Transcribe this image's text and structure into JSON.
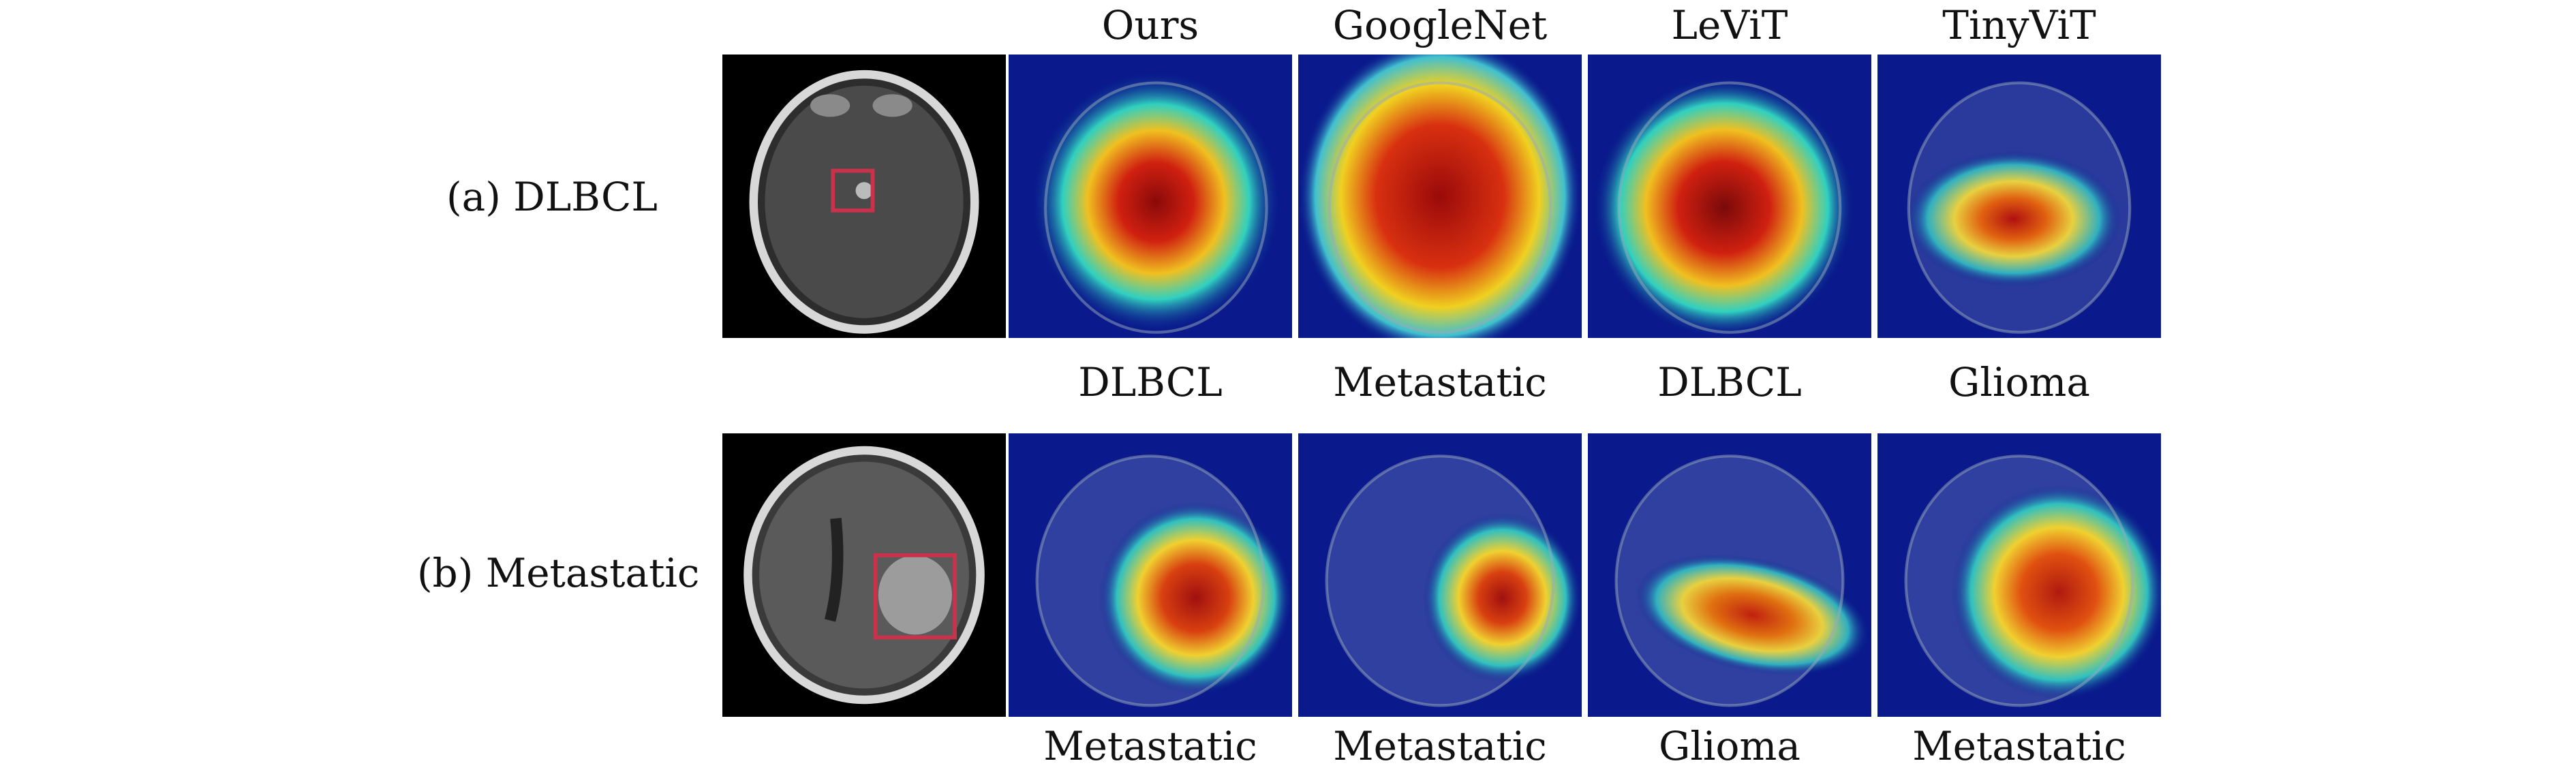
{
  "columns": [
    "Ours",
    "GoogleNet",
    "LeViT",
    "TinyViT"
  ],
  "rows": [
    {
      "label": "(a) DLBCL",
      "predictions": [
        "DLBCL",
        "Metastatic",
        "DLBCL",
        "Glioma"
      ]
    },
    {
      "label": "(b) Metastatic",
      "predictions": [
        "Metastatic",
        "Metastatic",
        "Glioma",
        "Metastatic"
      ]
    }
  ],
  "colors": {
    "roi_box": "#c8324a",
    "heat_bg": "#0a1a8c",
    "heat_hot": "#b4140a"
  }
}
